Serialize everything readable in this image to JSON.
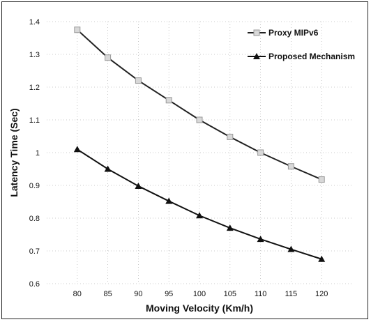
{
  "chart_data": {
    "type": "line",
    "title": "",
    "xlabel": "Moving Velocity (Km/h)",
    "ylabel": "Latency Time (Sec)",
    "x": [
      80,
      85,
      90,
      95,
      100,
      105,
      110,
      115,
      120
    ],
    "x_tick_labels": [
      "80",
      "85",
      "90",
      "95",
      "100",
      "105",
      "110",
      "115",
      "120"
    ],
    "y_ticks": [
      0.6,
      0.7,
      0.8,
      0.9,
      1.0,
      1.1,
      1.2,
      1.3,
      1.4
    ],
    "y_tick_labels": [
      "0.6",
      "0.7",
      "0.8",
      "0.9",
      "1",
      "1.1",
      "1.2",
      "1.3",
      "1.4"
    ],
    "xlim": [
      75,
      125
    ],
    "ylim": [
      0.6,
      1.4
    ],
    "grid": true,
    "legend_position": "top-right",
    "series": [
      {
        "name": "Proxy MIPv6",
        "values": [
          1.375,
          1.29,
          1.22,
          1.16,
          1.1,
          1.048,
          1.0,
          0.958,
          0.918
        ],
        "color": "#222222",
        "marker_fill": "#d8d8d8",
        "marker": "square"
      },
      {
        "name": "Proposed Mechanism",
        "values": [
          1.01,
          0.95,
          0.898,
          0.852,
          0.808,
          0.77,
          0.736,
          0.705,
          0.675
        ],
        "color": "#111111",
        "marker_fill": "#111111",
        "marker": "triangle"
      }
    ]
  }
}
